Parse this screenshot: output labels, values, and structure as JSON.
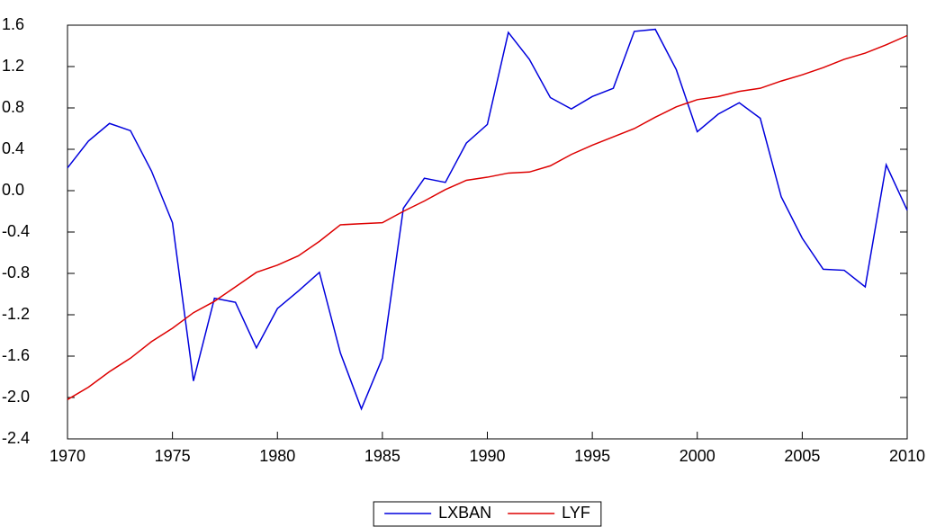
{
  "chart_data": {
    "type": "line",
    "x": [
      1970,
      1971,
      1972,
      1973,
      1974,
      1975,
      1976,
      1977,
      1978,
      1979,
      1980,
      1981,
      1982,
      1983,
      1984,
      1985,
      1986,
      1987,
      1988,
      1989,
      1990,
      1991,
      1992,
      1993,
      1994,
      1995,
      1996,
      1997,
      1998,
      1999,
      2000,
      2001,
      2002,
      2003,
      2004,
      2005,
      2006,
      2007,
      2008,
      2009,
      2010
    ],
    "series": [
      {
        "name": "LXBAN",
        "color": "#0000dd",
        "values": [
          0.22,
          0.48,
          0.65,
          0.58,
          0.19,
          -0.31,
          -1.84,
          -1.04,
          -1.08,
          -1.52,
          -1.14,
          -0.97,
          -0.79,
          -1.57,
          -2.11,
          -1.62,
          -0.17,
          0.12,
          0.08,
          0.46,
          0.64,
          1.53,
          1.27,
          0.9,
          0.79,
          0.91,
          0.99,
          1.54,
          1.56,
          1.17,
          0.57,
          0.74,
          0.85,
          0.7,
          -0.06,
          -0.46,
          -0.76,
          -0.77,
          -0.93,
          0.25,
          -0.19
        ]
      },
      {
        "name": "LYF",
        "color": "#dd0000",
        "values": [
          -2.02,
          -1.9,
          -1.75,
          -1.62,
          -1.46,
          -1.33,
          -1.18,
          -1.07,
          -0.93,
          -0.79,
          -0.72,
          -0.63,
          -0.49,
          -0.33,
          -0.32,
          -0.31,
          -0.2,
          -0.1,
          0.01,
          0.1,
          0.13,
          0.17,
          0.18,
          0.24,
          0.35,
          0.44,
          0.52,
          0.6,
          0.71,
          0.81,
          0.88,
          0.91,
          0.96,
          0.99,
          1.06,
          1.12,
          1.19,
          1.27,
          1.33,
          1.41,
          1.5
        ]
      }
    ],
    "xlim": [
      1970,
      2010
    ],
    "xticks": [
      1970,
      1975,
      1980,
      1985,
      1990,
      1995,
      2000,
      2005,
      2010
    ],
    "ylim": [
      -2.4,
      1.6
    ],
    "yticks": [
      1.6,
      1.2,
      0.8,
      0.4,
      {
        "value": 0,
        "label": "0.0"
      },
      -0.4,
      -0.8,
      -1.2,
      -1.6,
      {
        "value": -2,
        "label": "-2.0"
      },
      -2.4
    ],
    "grid": false,
    "legend": "bottom"
  }
}
